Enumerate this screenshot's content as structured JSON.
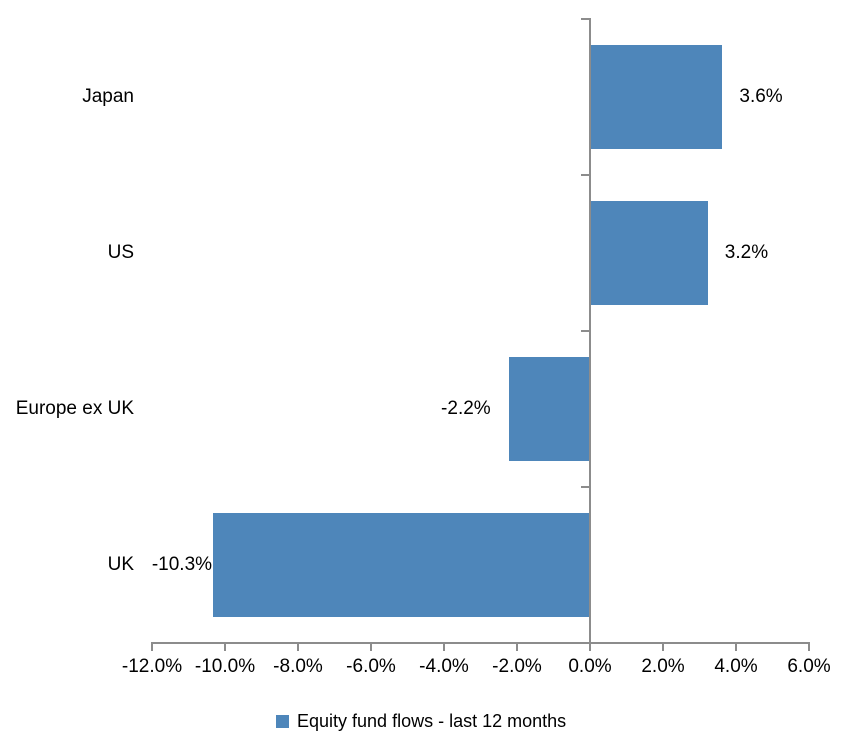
{
  "chart_data": {
    "type": "bar",
    "orientation": "horizontal",
    "title": "",
    "legend": "Equity fund flows - last 12 months",
    "legend_position": "bottom",
    "categories": [
      "Japan",
      "US",
      "Europe ex UK",
      "UK"
    ],
    "values": [
      3.6,
      3.2,
      -2.2,
      -10.3
    ],
    "data_labels": [
      "3.6%",
      "3.2%",
      "-2.2%",
      "-10.3%"
    ],
    "x_tick_labels": [
      "-12.0%",
      "-10.0%",
      "-8.0%",
      "-6.0%",
      "-4.0%",
      "-2.0%",
      "0.0%",
      "2.0%",
      "4.0%",
      "6.0%"
    ],
    "x_tick_values": [
      -12,
      -10,
      -8,
      -6,
      -4,
      -2,
      0,
      2,
      4,
      6
    ],
    "xlim": [
      -12,
      6
    ],
    "grid": false,
    "colors": {
      "bar": "#4e86ba",
      "axis": "#8c8c8c",
      "text": "#000000",
      "background": "#ffffff"
    }
  }
}
